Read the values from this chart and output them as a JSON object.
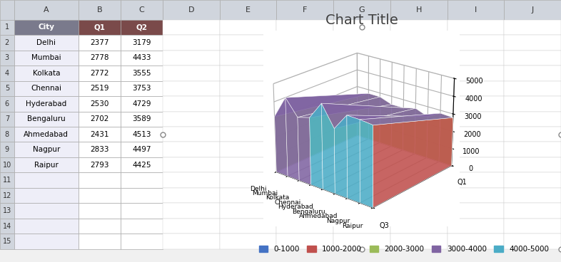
{
  "title": "Chart Title",
  "cities": [
    "Delhi",
    "Mumbai",
    "Kolkata",
    "Chennai",
    "Hyderabad",
    "Bengaluru",
    "Ahmedabad",
    "Nagpur",
    "Raipur"
  ],
  "Q1": [
    2377,
    2778,
    2772,
    2519,
    2530,
    2702,
    2431,
    2833,
    2793
  ],
  "Q2": [
    3179,
    4433,
    3555,
    3753,
    4729,
    3589,
    4513,
    4497,
    4425
  ],
  "legend_labels": [
    "0-1000",
    "1000-2000",
    "2000-3000",
    "3000-4000",
    "4000-5000"
  ],
  "legend_colors": [
    "#4472c4",
    "#c0504d",
    "#9bbb59",
    "#8064a2",
    "#4bacc6"
  ],
  "yticks": [
    0,
    1000,
    2000,
    3000,
    4000,
    5000
  ],
  "background_color": "#ffffff",
  "title_fontsize": 14,
  "elev": 22,
  "azim": -50,
  "figsize": [
    7.86,
    3.68
  ],
  "dpi": 100,
  "col_header_color": "#dce6f1",
  "row_header_color": "#dce6f1",
  "header_bg_city": "#7a7a8c",
  "header_bg_q": "#7a4a4a",
  "city_row_color": "#eeeef8",
  "excel_col_headers": [
    "",
    "A",
    "B",
    "C",
    "D",
    "E",
    "F",
    "G",
    "H",
    "I",
    "J"
  ],
  "excel_rows": 15,
  "excel_cols": 10
}
